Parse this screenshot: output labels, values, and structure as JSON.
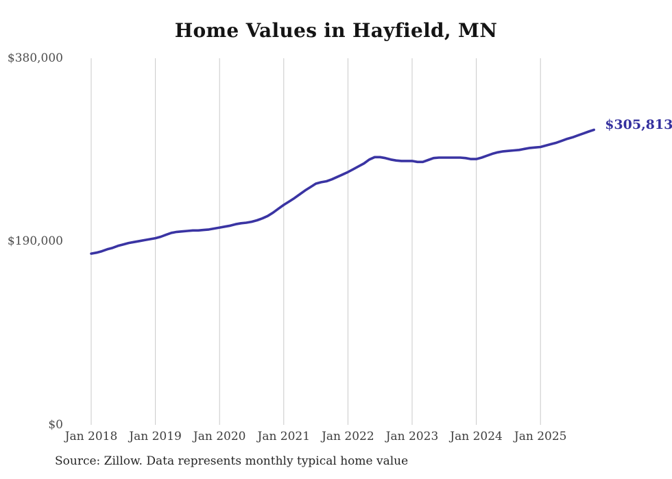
{
  "title": "Home Values in Hayfield, MN",
  "source_note": "Source: Zillow. Data represents monthly typical home value",
  "colors": {
    "line": "#3a34a3",
    "end_label": "#34309e",
    "grid": "#c9c9c9",
    "title_text": "#141414",
    "axis_text": "#3d3d3d",
    "y_axis_text": "#4d4d4d",
    "source_text": "#252525",
    "background": "#ffffff"
  },
  "chart_data": {
    "type": "line",
    "title": "Home Values in Hayfield, MN",
    "xlabel": "",
    "ylabel": "",
    "unit": "USD",
    "grid": "vertical-only",
    "legend": "none",
    "ylim": [
      0,
      380000
    ],
    "y_tick_labels": [
      "$380,000",
      "$190,000",
      "$0"
    ],
    "x_tick_labels": [
      "Jan 2018",
      "Jan 2019",
      "Jan 2020",
      "Jan 2021",
      "Jan 2022",
      "Jan 2023",
      "Jan 2024",
      "Jan 2025"
    ],
    "series": [
      {
        "name": "Monthly typical home value",
        "start_month": "2018-01",
        "end_month": "2025-11",
        "frequency": "monthly",
        "last_value": 305813,
        "last_value_label": "$305,813",
        "values": [
          177500,
          178500,
          180000,
          182000,
          183500,
          185500,
          187000,
          188500,
          189500,
          190500,
          191500,
          192500,
          193500,
          195000,
          197000,
          199000,
          200000,
          200500,
          201000,
          201500,
          201500,
          202000,
          202500,
          203500,
          204500,
          205500,
          206500,
          208000,
          209000,
          209500,
          210500,
          212000,
          214000,
          216500,
          220000,
          224000,
          228000,
          231500,
          235000,
          239000,
          243000,
          246500,
          250000,
          251500,
          252500,
          254500,
          257000,
          259500,
          262000,
          265000,
          268000,
          271000,
          275000,
          277500,
          277500,
          276500,
          275000,
          274000,
          273500,
          273500,
          273500,
          272500,
          272500,
          274500,
          276500,
          277000,
          277000,
          277000,
          277000,
          277000,
          276500,
          275500,
          275500,
          277000,
          279000,
          281000,
          282500,
          283500,
          284000,
          284500,
          285000,
          286000,
          287000,
          287500,
          288000,
          289500,
          291000,
          292500,
          294500,
          296500,
          298000,
          300000,
          302000,
          304000,
          305813
        ]
      }
    ]
  }
}
